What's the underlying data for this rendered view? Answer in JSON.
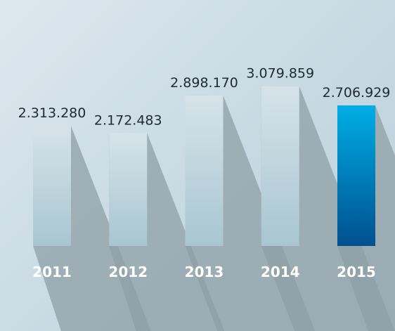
{
  "chart_data": {
    "type": "bar",
    "categories": [
      "2011",
      "2012",
      "2013",
      "2014",
      "2015"
    ],
    "values": [
      2313280,
      2172483,
      2898170,
      3079859,
      2706929
    ],
    "value_labels": [
      "2.313.280",
      "2.172.483",
      "2.898.170",
      "3.079.859",
      "2.706.929"
    ],
    "title": "",
    "xlabel": "",
    "ylabel": "",
    "highlight_index": 4,
    "colors": {
      "bar_top": "#d6e3e9",
      "bar_bottom": "#a8c6d1",
      "highlight_top": "#00aee6",
      "highlight_bottom": "#00508e",
      "shadow": "#8f9fa6"
    }
  }
}
